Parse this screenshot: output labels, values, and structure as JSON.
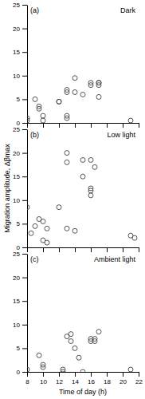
{
  "chart_data": [
    {
      "type": "scatter",
      "title": "Dark",
      "annotations": [
        "(a)"
      ],
      "x": [
        8,
        8,
        9,
        9.5,
        9.5,
        10,
        10,
        12,
        12,
        13,
        13,
        13,
        13,
        14,
        14,
        15,
        16,
        16,
        17,
        17,
        17,
        17,
        21
      ],
      "values": [
        1,
        0.5,
        5,
        3,
        3.5,
        1.5,
        0.5,
        4.5,
        4.5,
        7,
        6.5,
        1.5,
        1,
        9.5,
        6.5,
        6,
        8.5,
        8,
        8.5,
        8.5,
        8,
        5.5,
        0.5
      ],
      "color": "#444444",
      "xlim": [
        8,
        22
      ],
      "ylim": [
        0,
        25
      ],
      "xticks": [
        8,
        10,
        12,
        14,
        16,
        18,
        20,
        22
      ],
      "yticks": [
        0,
        5,
        10,
        15,
        20,
        25
      ],
      "tick_labels": "y"
    },
    {
      "type": "scatter",
      "title": "Low light",
      "annotations": [
        "(b)"
      ],
      "ylabel": "Migration amplitude, Δβmax",
      "x": [
        8,
        8.5,
        9,
        9.5,
        10,
        10,
        10.5,
        10.5,
        12,
        13,
        13,
        13,
        14,
        15,
        15,
        16,
        16,
        16,
        16,
        16.5,
        21,
        21.5
      ],
      "values": [
        8.5,
        3,
        4.5,
        6,
        5.5,
        1.5,
        1,
        4,
        8.5,
        20,
        18,
        4,
        3.5,
        15,
        18.5,
        18.5,
        12.5,
        12,
        11,
        17,
        2.5,
        2
      ],
      "color": "#444444",
      "xlim": [
        8,
        22
      ],
      "ylim": [
        0,
        25
      ],
      "xticks": [
        8,
        10,
        12,
        14,
        16,
        18,
        20,
        22
      ],
      "yticks": [
        0,
        5,
        10,
        15,
        20,
        25
      ],
      "tick_labels": "y"
    },
    {
      "type": "scatter",
      "title": "Ambient light",
      "annotations": [
        "(c)"
      ],
      "xlabel": "Time of day (h)",
      "x": [
        8,
        9.5,
        10,
        10,
        12.5,
        12.5,
        13,
        13.5,
        13.5,
        14,
        14.5,
        15,
        16,
        16,
        16.5,
        16.5,
        17,
        21
      ],
      "values": [
        0.5,
        3.5,
        1.5,
        1,
        0.5,
        0,
        7.5,
        8,
        6.5,
        5,
        3,
        0,
        6.5,
        7,
        7,
        6.5,
        8.5,
        0.5
      ],
      "color": "#444444",
      "xlim": [
        8,
        22
      ],
      "ylim": [
        0,
        25
      ],
      "xticks": [
        8,
        10,
        12,
        14,
        16,
        18,
        20,
        22
      ],
      "yticks": [
        0,
        5,
        10,
        15,
        20,
        25
      ]
    }
  ]
}
